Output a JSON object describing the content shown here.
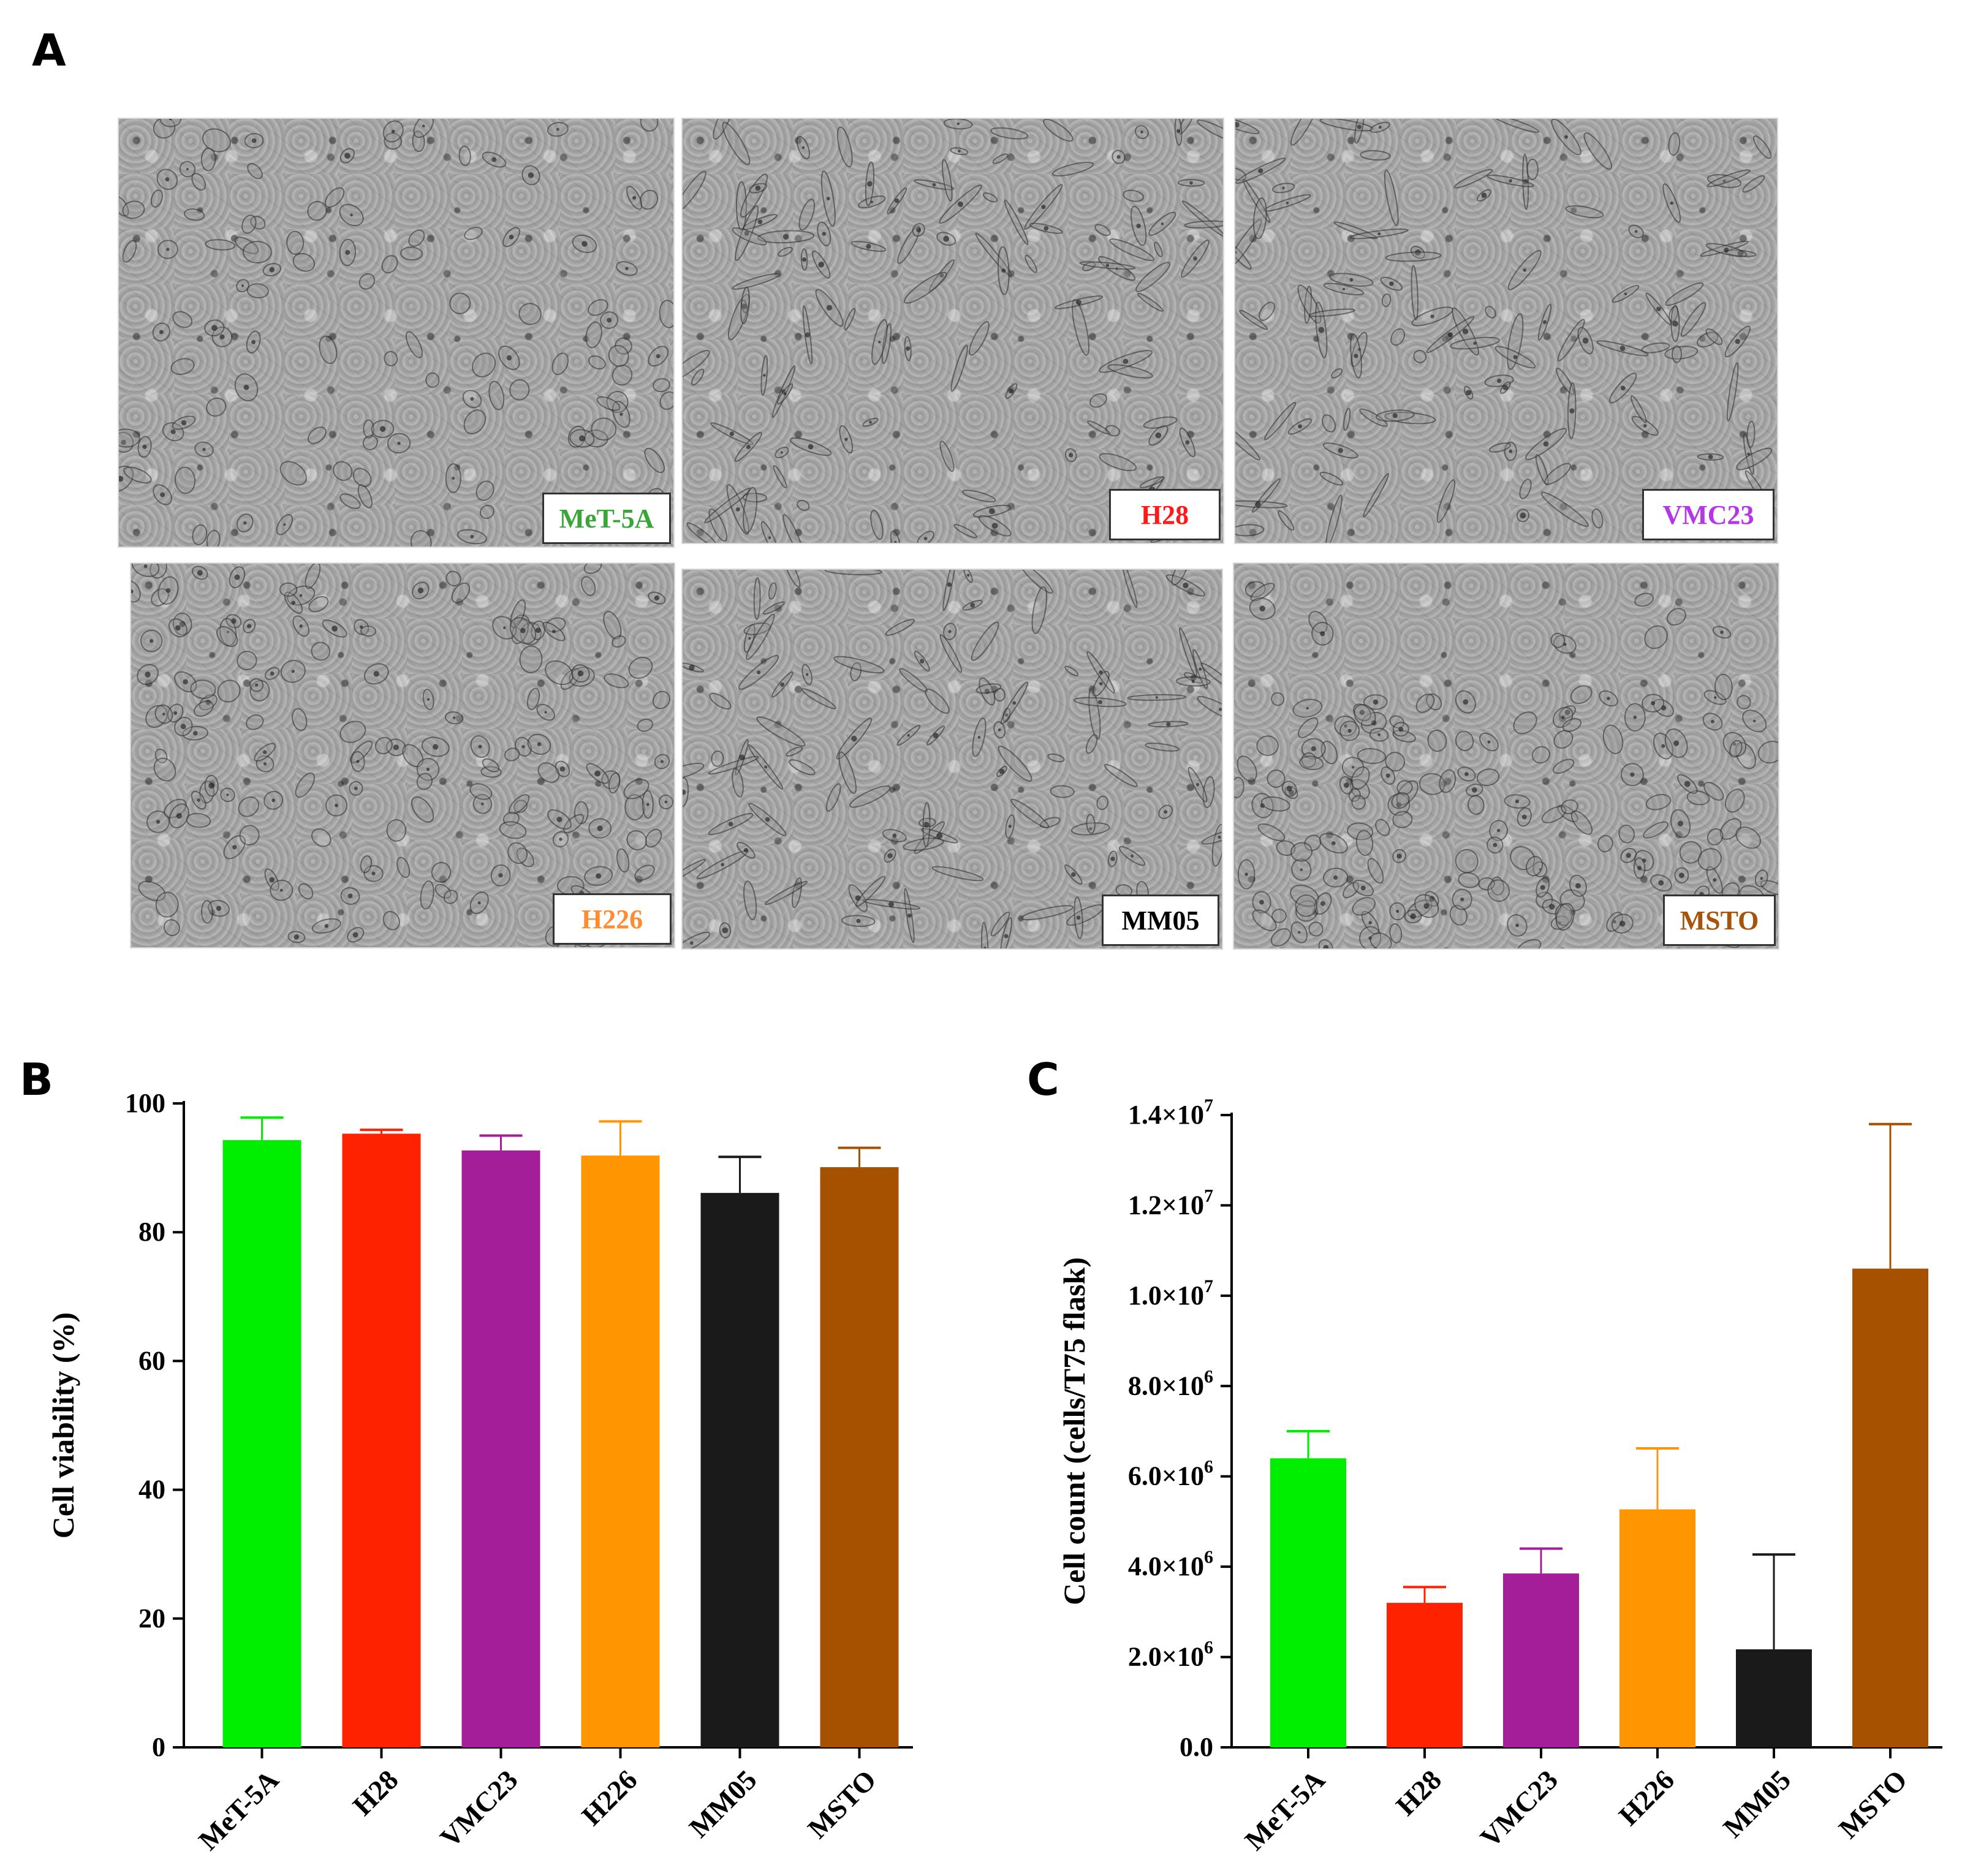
{
  "panels": {
    "a_letter": "A",
    "b_letter": "B",
    "c_letter": "C"
  },
  "micrographs": [
    {
      "label": "MeT-5A",
      "color": "#3aa63a",
      "style": "epithelial"
    },
    {
      "label": "H28",
      "color": "#ff1a1a",
      "style": "spindle"
    },
    {
      "label": "VMC23",
      "color": "#b436e6",
      "style": "spindle"
    },
    {
      "label": "H226",
      "color": "#ff8c33",
      "style": "cobblestone"
    },
    {
      "label": "MM05",
      "color": "#000000",
      "style": "spindle"
    },
    {
      "label": "MSTO",
      "color": "#a6540a",
      "style": "dense"
    }
  ],
  "chart_data": [
    {
      "type": "bar",
      "panel": "B",
      "categories": [
        "MeT-5A",
        "H28",
        "VMC23",
        "H226",
        "MM05",
        "MSTO"
      ],
      "values": [
        94.3,
        95.3,
        92.7,
        91.9,
        86.1,
        90.1
      ],
      "errors": [
        3.5,
        0.6,
        2.3,
        5.3,
        5.6,
        3.0
      ],
      "colors": [
        "#00ee00",
        "#ff2200",
        "#a51e99",
        "#ff9500",
        "#1a1a1a",
        "#a65100"
      ],
      "ylabel": "Cell viability (%)",
      "xlabel": "",
      "ylim": [
        0,
        100
      ],
      "yticks": [
        "0",
        "20",
        "40",
        "60",
        "80",
        "100"
      ]
    },
    {
      "type": "bar",
      "panel": "C",
      "categories": [
        "MeT-5A",
        "H28",
        "VMC23",
        "H226",
        "MM05",
        "MSTO"
      ],
      "values": [
        6400000,
        3200000,
        3850000,
        5270000,
        2170000,
        10600000
      ],
      "errors": [
        600000,
        350000,
        550000,
        1350000,
        2100000,
        3200000
      ],
      "colors": [
        "#00ee00",
        "#ff2200",
        "#a51e99",
        "#ff9500",
        "#1a1a1a",
        "#a65100"
      ],
      "ylabel": "Cell count (cells/T75 flask)",
      "xlabel": "",
      "ylim": [
        0,
        14000000
      ],
      "yticks": [
        {
          "mantissa": "0.0",
          "exp": ""
        },
        {
          "mantissa": "2.0×10",
          "exp": "6"
        },
        {
          "mantissa": "4.0×10",
          "exp": "6"
        },
        {
          "mantissa": "6.0×10",
          "exp": "6"
        },
        {
          "mantissa": "8.0×10",
          "exp": "6"
        },
        {
          "mantissa": "1.0×10",
          "exp": "7"
        },
        {
          "mantissa": "1.2×10",
          "exp": "7"
        },
        {
          "mantissa": "1.4×10",
          "exp": "7"
        }
      ]
    }
  ]
}
